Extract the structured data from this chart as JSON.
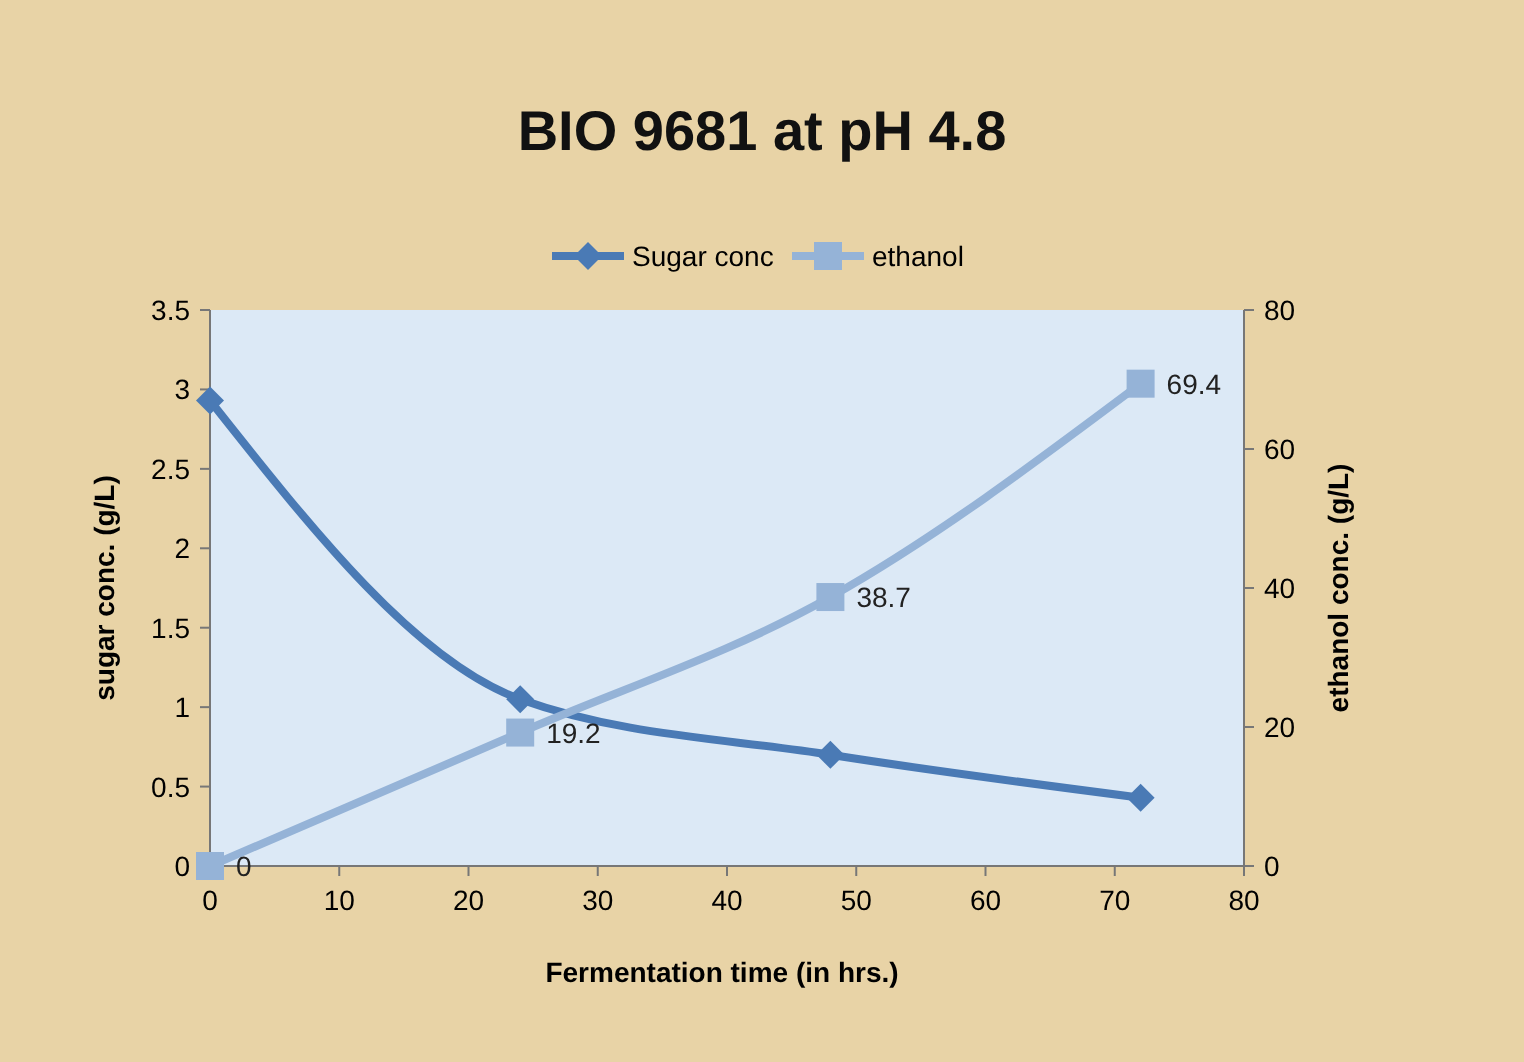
{
  "chart_data": {
    "type": "line",
    "title": "BIO 9681 at pH 4.8",
    "xlabel": "Fermentation time (in hrs.)",
    "ylabel": "sugar conc. (g/L)",
    "y2label": "ethanol conc. (g/L)",
    "xlim": [
      0,
      80
    ],
    "xticks": [
      0,
      10,
      20,
      30,
      40,
      50,
      60,
      70,
      80
    ],
    "ylim": [
      0,
      3.5
    ],
    "yticks": [
      0,
      0.5,
      1,
      1.5,
      2,
      2.5,
      3,
      3.5
    ],
    "y2lim": [
      0,
      80
    ],
    "y2ticks": [
      0,
      20,
      40,
      60,
      80
    ],
    "grid": false,
    "legend": "top",
    "line_style": "solid",
    "series": [
      {
        "name": "Sugar conc",
        "color": "#4a7ab5",
        "x": [
          0,
          24,
          48,
          72
        ],
        "values": [
          2.93,
          1.05,
          0.7,
          0.43
        ],
        "marker": "diamond"
      },
      {
        "name": "ethanol",
        "color": "#95b3d7",
        "axis": "y2",
        "x": [
          0,
          24,
          48,
          72
        ],
        "values": [
          0,
          19.2,
          38.7,
          69.4
        ],
        "marker": "square",
        "value_labels": [
          "0",
          "19.2",
          "38.7",
          "69.4"
        ]
      }
    ]
  }
}
